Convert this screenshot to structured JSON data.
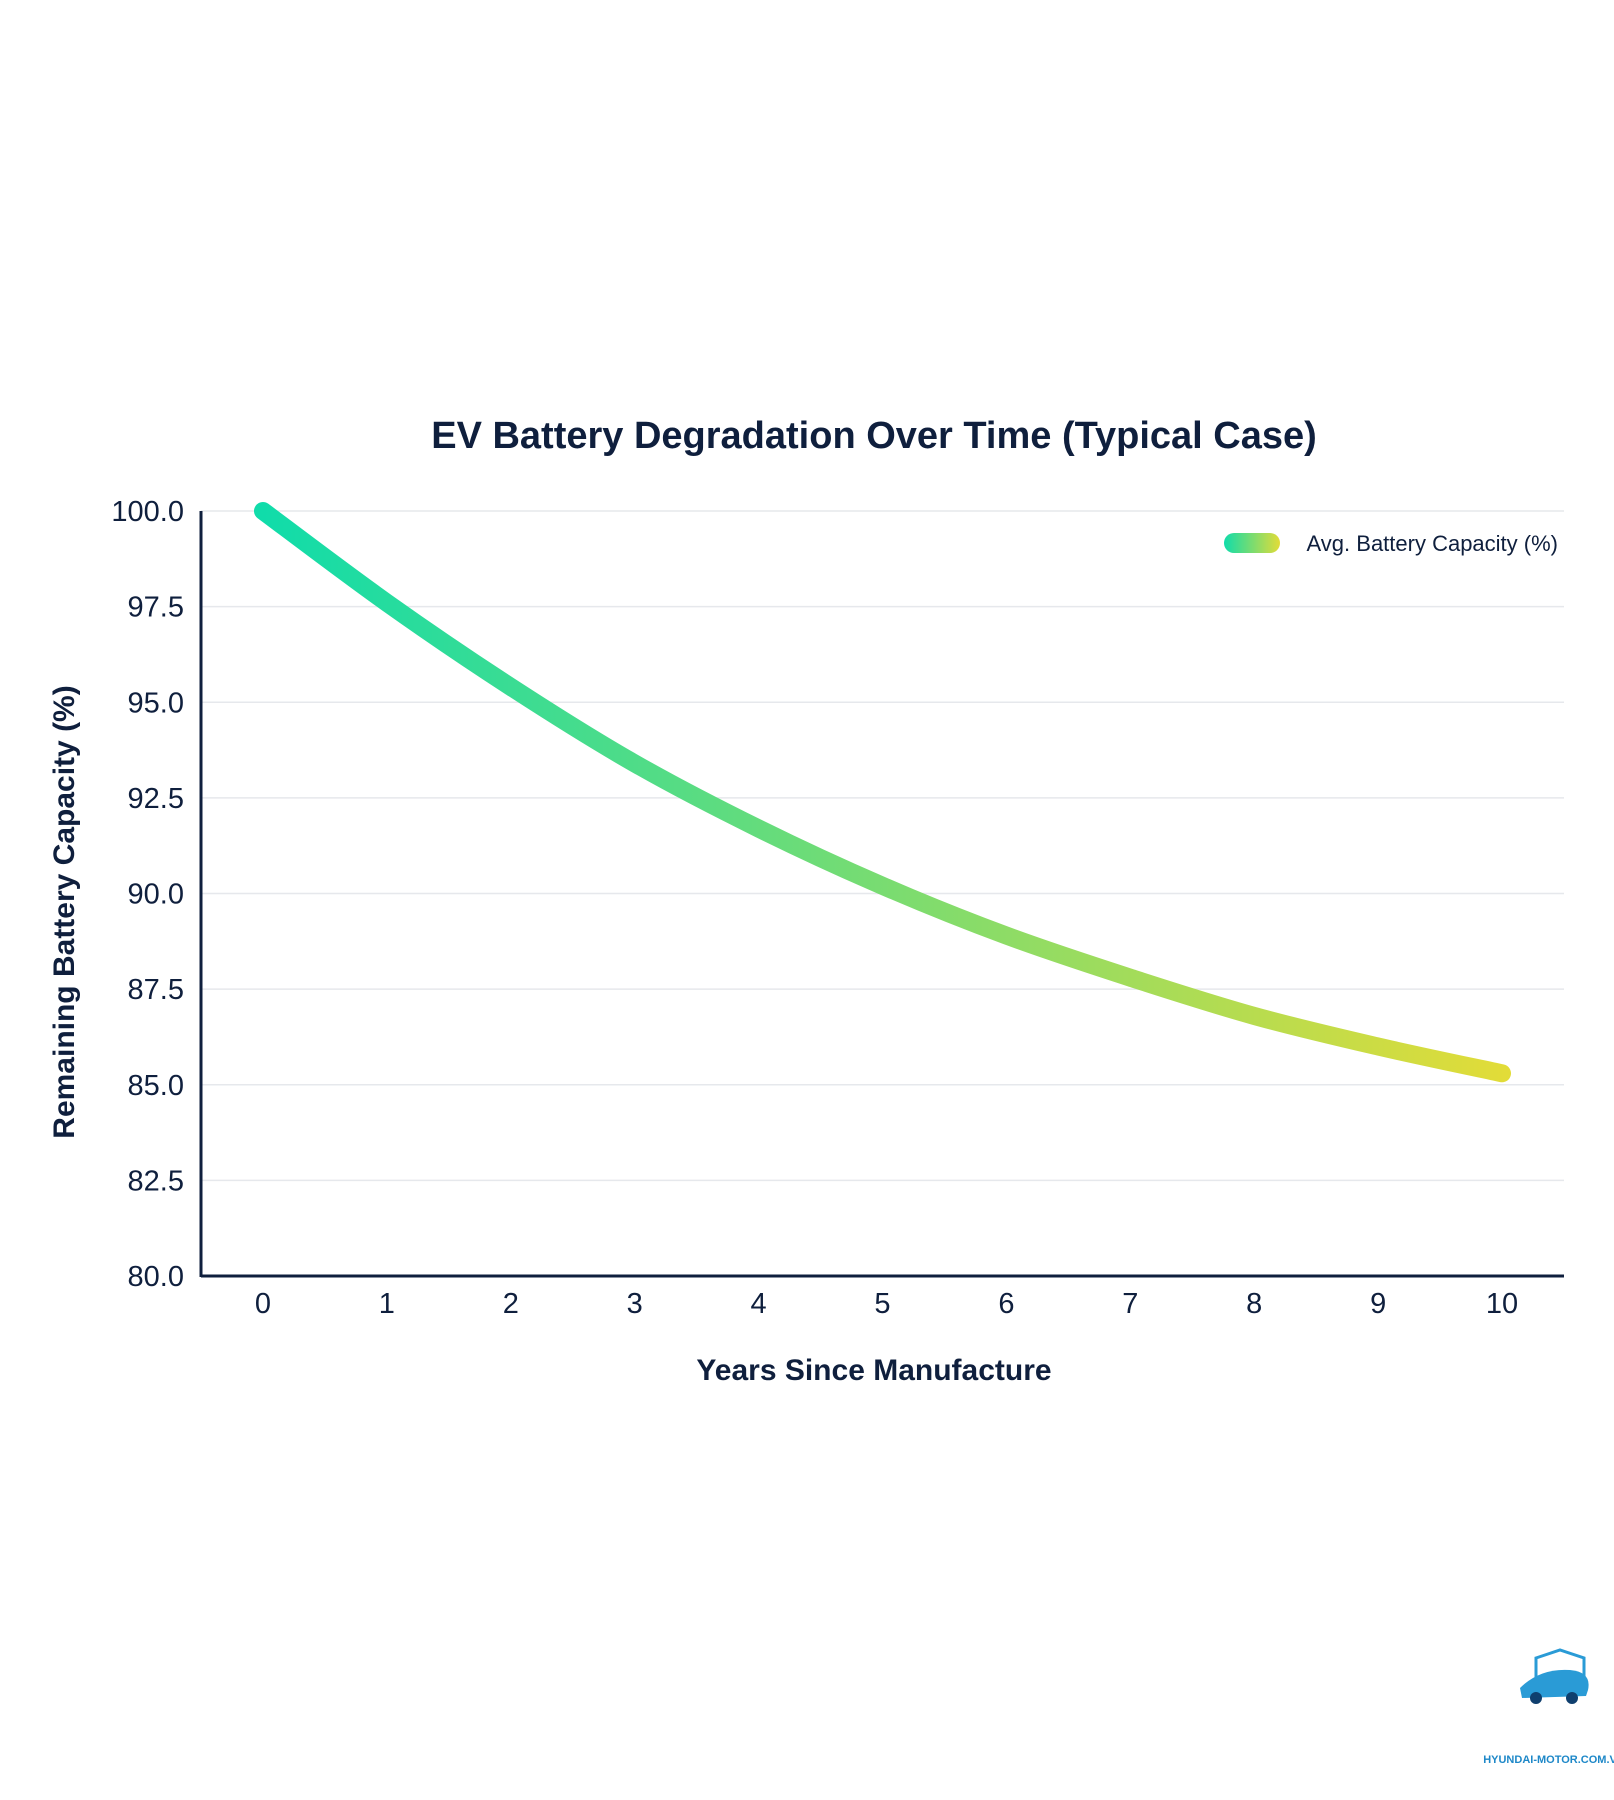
{
  "chart_data": {
    "type": "line",
    "title": "EV Battery Degradation Over Time (Typical Case)",
    "xlabel": "Years Since Manufacture",
    "ylabel": "Remaining Battery Capacity (%)",
    "x": [
      0,
      1,
      2,
      3,
      4,
      5,
      6,
      7,
      8,
      9,
      10
    ],
    "x_ticks": [
      "0",
      "1",
      "2",
      "3",
      "4",
      "5",
      "6",
      "7",
      "8",
      "9",
      "10"
    ],
    "xlim": [
      -0.5,
      10.5
    ],
    "ylim": [
      80,
      100
    ],
    "y_ticks": [
      "80.0",
      "82.5",
      "85.0",
      "87.5",
      "90.0",
      "92.5",
      "95.0",
      "97.5",
      "100.0"
    ],
    "grid": true,
    "legend_position": "top-right",
    "series": [
      {
        "name": "Avg. Battery Capacity (%)",
        "values": [
          100.0,
          97.6,
          95.4,
          93.4,
          91.7,
          90.2,
          88.9,
          87.8,
          86.8,
          86.0,
          85.3
        ],
        "color_start": "#10dcaa",
        "color_end": "#e2dc38"
      }
    ]
  },
  "watermark": {
    "text": "HYUNDAI-MOTOR.COM.VN",
    "icon": "car-logo-icon"
  }
}
